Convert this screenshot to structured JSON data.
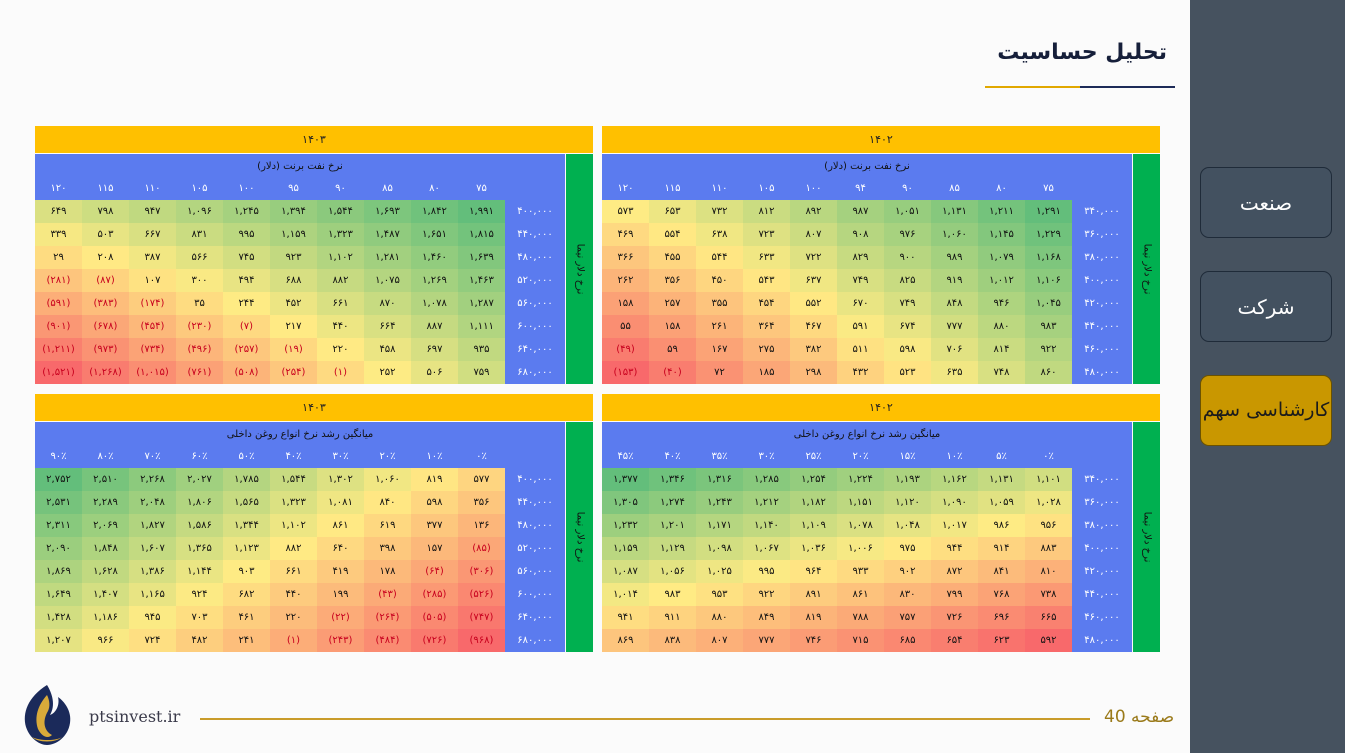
{
  "title": "تحلیل حساسیت",
  "sidebar": [
    {
      "label": "صنعت",
      "active": false
    },
    {
      "label": "شرکت",
      "active": false
    },
    {
      "label": "کارشناسی سهم",
      "active": true
    }
  ],
  "footer": {
    "page": "صفحه 40",
    "site": "ptsinvest.ir",
    "logo_icon": "flame-logo-icon"
  },
  "colors": {
    "header": "#ffc000",
    "axis": "#5b7bef",
    "side": "#00b050",
    "negative": "#c8001e"
  },
  "panels": [
    {
      "id": "brent-1402",
      "year": "۱۴۰۲",
      "subtitle": "نرخ نفت برنت (دلار)",
      "side_label": "نرخ دلار نیما",
      "columns": [
        "۷۵",
        "۸۰",
        "۸۵",
        "۹۰",
        "۹۴",
        "۱۰۰",
        "۱۰۵",
        "۱۱۰",
        "۱۱۵",
        "۱۲۰"
      ],
      "rows": [
        {
          "label": "۳۴۰,۰۰۰",
          "values": [
            "۱,۲۹۱",
            "۱,۲۱۱",
            "۱,۱۳۱",
            "۱,۰۵۱",
            "۹۸۷",
            "۸۹۲",
            "۸۱۲",
            "۷۳۲",
            "۶۵۳",
            "۵۷۳"
          ]
        },
        {
          "label": "۳۶۰,۰۰۰",
          "values": [
            "۱,۲۲۹",
            "۱,۱۴۵",
            "۱,۰۶۰",
            "۹۷۶",
            "۹۰۸",
            "۸۰۷",
            "۷۲۳",
            "۶۳۸",
            "۵۵۴",
            "۴۶۹"
          ]
        },
        {
          "label": "۳۸۰,۰۰۰",
          "values": [
            "۱,۱۶۸",
            "۱,۰۷۹",
            "۹۸۹",
            "۹۰۰",
            "۸۲۹",
            "۷۲۲",
            "۶۳۳",
            "۵۴۴",
            "۴۵۵",
            "۳۶۶"
          ]
        },
        {
          "label": "۴۰۰,۰۰۰",
          "values": [
            "۱,۱۰۶",
            "۱,۰۱۲",
            "۹۱۹",
            "۸۲۵",
            "۷۴۹",
            "۶۳۷",
            "۵۴۳",
            "۴۵۰",
            "۳۵۶",
            "۲۶۲"
          ]
        },
        {
          "label": "۴۲۰,۰۰۰",
          "values": [
            "۱,۰۴۵",
            "۹۴۶",
            "۸۴۸",
            "۷۴۹",
            "۶۷۰",
            "۵۵۲",
            "۴۵۴",
            "۳۵۵",
            "۲۵۷",
            "۱۵۸"
          ]
        },
        {
          "label": "۴۴۰,۰۰۰",
          "values": [
            "۹۸۳",
            "۸۸۰",
            "۷۷۷",
            "۶۷۴",
            "۵۹۱",
            "۴۶۷",
            "۳۶۴",
            "۲۶۱",
            "۱۵۸",
            "۵۵"
          ]
        },
        {
          "label": "۴۶۰,۰۰۰",
          "values": [
            "۹۲۲",
            "۸۱۴",
            "۷۰۶",
            "۵۹۸",
            "۵۱۱",
            "۳۸۲",
            "۲۷۵",
            "۱۶۷",
            "۵۹",
            "(۴۹)"
          ]
        },
        {
          "label": "۴۸۰,۰۰۰",
          "values": [
            "۸۶۰",
            "۷۴۸",
            "۶۳۵",
            "۵۲۳",
            "۴۳۲",
            "۲۹۸",
            "۱۸۵",
            "۷۲",
            "(۴۰)",
            "(۱۵۳)"
          ]
        }
      ]
    },
    {
      "id": "brent-1403",
      "year": "۱۴۰۳",
      "subtitle": "نرخ نفت برنت (دلار)",
      "side_label": "نرخ دلار نیما",
      "columns": [
        "۷۵",
        "۸۰",
        "۸۵",
        "۹۰",
        "۹۵",
        "۱۰۰",
        "۱۰۵",
        "۱۱۰",
        "۱۱۵",
        "۱۲۰"
      ],
      "rows": [
        {
          "label": "۴۰۰,۰۰۰",
          "values": [
            "۱,۹۹۱",
            "۱,۸۴۲",
            "۱,۶۹۳",
            "۱,۵۴۴",
            "۱,۳۹۴",
            "۱,۲۴۵",
            "۱,۰۹۶",
            "۹۴۷",
            "۷۹۸",
            "۶۴۹"
          ]
        },
        {
          "label": "۴۴۰,۰۰۰",
          "values": [
            "۱,۸۱۵",
            "۱,۶۵۱",
            "۱,۴۸۷",
            "۱,۳۲۳",
            "۱,۱۵۹",
            "۹۹۵",
            "۸۳۱",
            "۶۶۷",
            "۵۰۳",
            "۳۳۹"
          ]
        },
        {
          "label": "۴۸۰,۰۰۰",
          "values": [
            "۱,۶۳۹",
            "۱,۴۶۰",
            "۱,۲۸۱",
            "۱,۱۰۲",
            "۹۲۳",
            "۷۴۵",
            "۵۶۶",
            "۳۸۷",
            "۲۰۸",
            "۲۹"
          ]
        },
        {
          "label": "۵۲۰,۰۰۰",
          "values": [
            "۱,۴۶۳",
            "۱,۲۶۹",
            "۱,۰۷۵",
            "۸۸۲",
            "۶۸۸",
            "۴۹۴",
            "۳۰۰",
            "۱۰۷",
            "(۸۷)",
            "(۲۸۱)"
          ]
        },
        {
          "label": "۵۶۰,۰۰۰",
          "values": [
            "۱,۲۸۷",
            "۱,۰۷۸",
            "۸۷۰",
            "۶۶۱",
            "۴۵۲",
            "۲۴۴",
            "۳۵",
            "(۱۷۴)",
            "(۳۸۳)",
            "(۵۹۱)"
          ]
        },
        {
          "label": "۶۰۰,۰۰۰",
          "values": [
            "۱,۱۱۱",
            "۸۸۷",
            "۶۶۴",
            "۴۴۰",
            "۲۱۷",
            "(۷)",
            "(۲۳۰)",
            "(۴۵۴)",
            "(۶۷۸)",
            "(۹۰۱)"
          ]
        },
        {
          "label": "۶۴۰,۰۰۰",
          "values": [
            "۹۳۵",
            "۶۹۷",
            "۴۵۸",
            "۲۲۰",
            "(۱۹)",
            "(۲۵۷)",
            "(۴۹۶)",
            "(۷۳۴)",
            "(۹۷۳)",
            "(۱,۲۱۱)"
          ]
        },
        {
          "label": "۶۸۰,۰۰۰",
          "values": [
            "۷۵۹",
            "۵۰۶",
            "۲۵۲",
            "(۱)",
            "(۲۵۴)",
            "(۵۰۸)",
            "(۷۶۱)",
            "(۱,۰۱۵)",
            "(۱,۲۶۸)",
            "(۱,۵۲۱)"
          ]
        }
      ]
    },
    {
      "id": "oil-1402",
      "year": "۱۴۰۲",
      "subtitle": "میانگین رشد نرخ انواع روغن داخلی",
      "side_label": "نرخ دلار نیما",
      "columns": [
        "۰٪",
        "۵٪",
        "۱۰٪",
        "۱۵٪",
        "۲۰٪",
        "۲۵٪",
        "۳۰٪",
        "۳۵٪",
        "۴۰٪",
        "۴۵٪"
      ],
      "rows": [
        {
          "label": "۳۴۰,۰۰۰",
          "values": [
            "۱,۱۰۱",
            "۱,۱۳۱",
            "۱,۱۶۲",
            "۱,۱۹۳",
            "۱,۲۲۴",
            "۱,۲۵۴",
            "۱,۲۸۵",
            "۱,۳۱۶",
            "۱,۳۴۶",
            "۱,۳۷۷"
          ]
        },
        {
          "label": "۳۶۰,۰۰۰",
          "values": [
            "۱,۰۲۸",
            "۱,۰۵۹",
            "۱,۰۹۰",
            "۱,۱۲۰",
            "۱,۱۵۱",
            "۱,۱۸۲",
            "۱,۲۱۲",
            "۱,۲۴۳",
            "۱,۲۷۴",
            "۱,۳۰۵"
          ]
        },
        {
          "label": "۳۸۰,۰۰۰",
          "values": [
            "۹۵۶",
            "۹۸۶",
            "۱,۰۱۷",
            "۱,۰۴۸",
            "۱,۰۷۸",
            "۱,۱۰۹",
            "۱,۱۴۰",
            "۱,۱۷۱",
            "۱,۲۰۱",
            "۱,۲۳۲"
          ]
        },
        {
          "label": "۴۰۰,۰۰۰",
          "values": [
            "۸۸۳",
            "۹۱۴",
            "۹۴۴",
            "۹۷۵",
            "۱,۰۰۶",
            "۱,۰۳۶",
            "۱,۰۶۷",
            "۱,۰۹۸",
            "۱,۱۲۹",
            "۱,۱۵۹"
          ]
        },
        {
          "label": "۴۲۰,۰۰۰",
          "values": [
            "۸۱۰",
            "۸۴۱",
            "۸۷۲",
            "۹۰۲",
            "۹۳۳",
            "۹۶۴",
            "۹۹۵",
            "۱,۰۲۵",
            "۱,۰۵۶",
            "۱,۰۸۷"
          ]
        },
        {
          "label": "۴۴۰,۰۰۰",
          "values": [
            "۷۳۸",
            "۷۶۸",
            "۷۹۹",
            "۸۳۰",
            "۸۶۱",
            "۸۹۱",
            "۹۲۲",
            "۹۵۳",
            "۹۸۳",
            "۱,۰۱۴"
          ]
        },
        {
          "label": "۴۶۰,۰۰۰",
          "values": [
            "۶۶۵",
            "۶۹۶",
            "۷۲۶",
            "۷۵۷",
            "۷۸۸",
            "۸۱۹",
            "۸۴۹",
            "۸۸۰",
            "۹۱۱",
            "۹۴۱"
          ]
        },
        {
          "label": "۴۸۰,۰۰۰",
          "values": [
            "۵۹۲",
            "۶۲۳",
            "۶۵۴",
            "۶۸۵",
            "۷۱۵",
            "۷۴۶",
            "۷۷۷",
            "۸۰۷",
            "۸۳۸",
            "۸۶۹"
          ]
        }
      ]
    },
    {
      "id": "oil-1403",
      "year": "۱۴۰۳",
      "subtitle": "میانگین رشد نرخ انواع روغن داخلی",
      "side_label": "نرخ دلار نیما",
      "columns": [
        "۰٪",
        "۱۰٪",
        "۲۰٪",
        "۳۰٪",
        "۴۰٪",
        "۵۰٪",
        "۶۰٪",
        "۷۰٪",
        "۸۰٪",
        "۹۰٪"
      ],
      "rows": [
        {
          "label": "۴۰۰,۰۰۰",
          "values": [
            "۵۷۷",
            "۸۱۹",
            "۱,۰۶۰",
            "۱,۳۰۲",
            "۱,۵۴۴",
            "۱,۷۸۵",
            "۲,۰۲۷",
            "۲,۲۶۸",
            "۲,۵۱۰",
            "۲,۷۵۲"
          ]
        },
        {
          "label": "۴۴۰,۰۰۰",
          "values": [
            "۳۵۶",
            "۵۹۸",
            "۸۴۰",
            "۱,۰۸۱",
            "۱,۳۲۳",
            "۱,۵۶۵",
            "۱,۸۰۶",
            "۲,۰۴۸",
            "۲,۲۸۹",
            "۲,۵۳۱"
          ]
        },
        {
          "label": "۴۸۰,۰۰۰",
          "values": [
            "۱۳۶",
            "۳۷۷",
            "۶۱۹",
            "۸۶۱",
            "۱,۱۰۲",
            "۱,۳۴۴",
            "۱,۵۸۶",
            "۱,۸۲۷",
            "۲,۰۶۹",
            "۲,۳۱۱"
          ]
        },
        {
          "label": "۵۲۰,۰۰۰",
          "values": [
            "(۸۵)",
            "۱۵۷",
            "۳۹۸",
            "۶۴۰",
            "۸۸۲",
            "۱,۱۲۳",
            "۱,۳۶۵",
            "۱,۶۰۷",
            "۱,۸۴۸",
            "۲,۰۹۰"
          ]
        },
        {
          "label": "۵۶۰,۰۰۰",
          "values": [
            "(۳۰۶)",
            "(۶۴)",
            "۱۷۸",
            "۴۱۹",
            "۶۶۱",
            "۹۰۳",
            "۱,۱۴۴",
            "۱,۳۸۶",
            "۱,۶۲۸",
            "۱,۸۶۹"
          ]
        },
        {
          "label": "۶۰۰,۰۰۰",
          "values": [
            "(۵۲۶)",
            "(۲۸۵)",
            "(۴۳)",
            "۱۹۹",
            "۴۴۰",
            "۶۸۲",
            "۹۲۴",
            "۱,۱۶۵",
            "۱,۴۰۷",
            "۱,۶۴۹"
          ]
        },
        {
          "label": "۶۴۰,۰۰۰",
          "values": [
            "(۷۴۷)",
            "(۵۰۵)",
            "(۲۶۴)",
            "(۲۲)",
            "۲۲۰",
            "۴۶۱",
            "۷۰۳",
            "۹۴۵",
            "۱,۱۸۶",
            "۱,۴۲۸"
          ]
        },
        {
          "label": "۶۸۰,۰۰۰",
          "values": [
            "(۹۶۸)",
            "(۷۲۶)",
            "(۴۸۴)",
            "(۲۴۳)",
            "(۱)",
            "۲۴۱",
            "۴۸۲",
            "۷۲۴",
            "۹۶۶",
            "۱,۲۰۷"
          ]
        }
      ]
    }
  ]
}
